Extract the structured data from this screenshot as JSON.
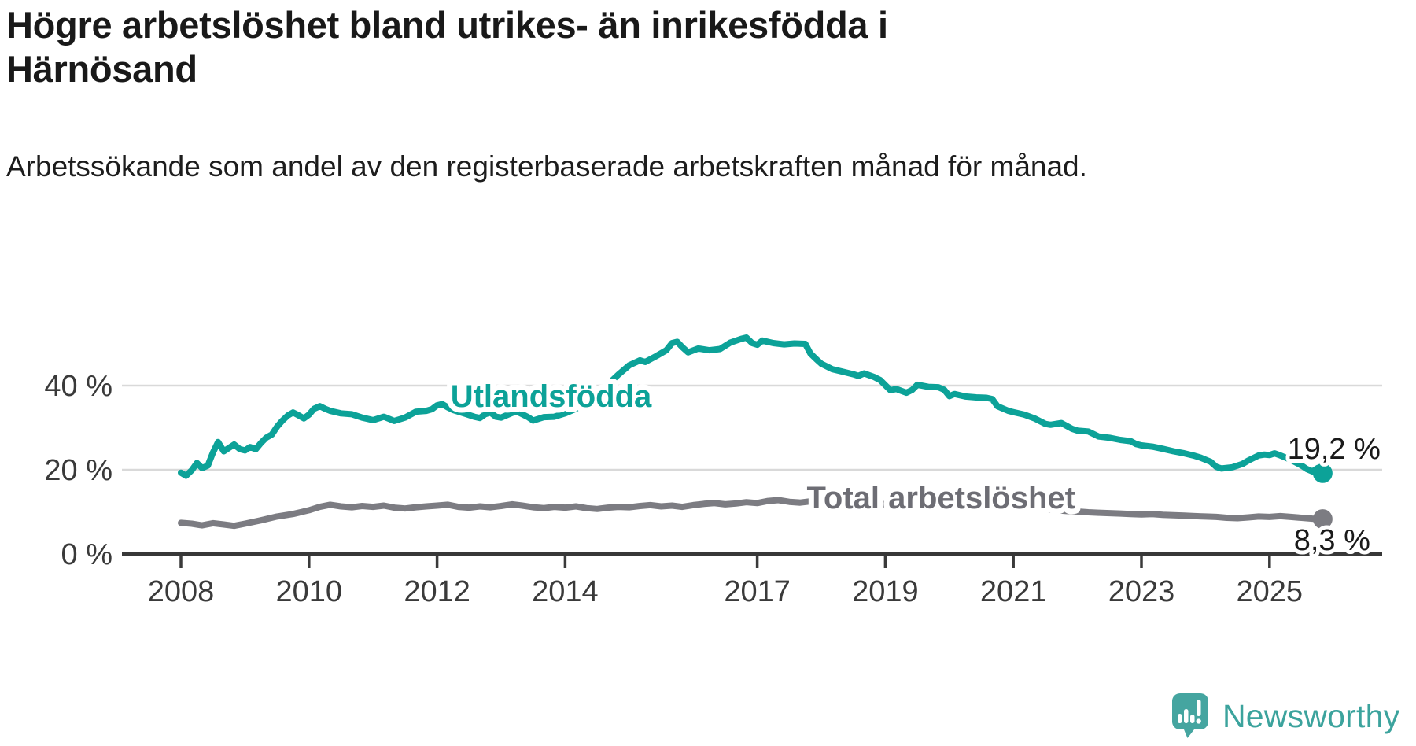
{
  "header": {
    "title": "Högre arbetslöshet bland utrikes- än inrikesfödda i Härnösand",
    "subtitle": "Arbetssökande som andel av den registerbaserade arbetskraften månad för månad."
  },
  "footer": {
    "brand": "Newsworthy",
    "brand_color": "#3ca39d"
  },
  "colors": {
    "foreign_born_line": "#0ca298",
    "total_line": "#7c7c82",
    "total_label": "#6d6d74",
    "grid": "#d9d9d9",
    "axis": "#383838",
    "tick_text": "#3a3a3a",
    "value_text": "#1a1a1a"
  },
  "chart_data": {
    "type": "line",
    "unit": "%",
    "xlabel": "",
    "ylabel": "",
    "grid": "horizontal",
    "legend_position": "inline-labels",
    "x_axis": {
      "range": [
        2007.1,
        2026.8
      ],
      "ticks": [
        {
          "value": 2008,
          "label": "2008"
        },
        {
          "value": 2010,
          "label": "2010"
        },
        {
          "value": 2012,
          "label": "2012"
        },
        {
          "value": 2014,
          "label": "2014"
        },
        {
          "value": 2017,
          "label": "2017"
        },
        {
          "value": 2019,
          "label": "2019"
        },
        {
          "value": 2021,
          "label": "2021"
        },
        {
          "value": 2023,
          "label": "2023"
        },
        {
          "value": 2025,
          "label": "2025"
        }
      ]
    },
    "y_axis": {
      "range": [
        0,
        53
      ],
      "ticks": [
        {
          "value": 0,
          "label": "0 %"
        },
        {
          "value": 20,
          "label": "20 %"
        },
        {
          "value": 40,
          "label": "40 %"
        }
      ]
    },
    "series": [
      {
        "name": "Total arbetslöshet",
        "color": "#7c7c82",
        "label_color": "#6d6d74",
        "label": {
          "x": 2019.87,
          "y": 10.8
        },
        "end_value": 8.3,
        "end_label": {
          "text": "8,3 %",
          "x": 2025.38,
          "y": 0.9
        },
        "points": [
          [
            2008.0,
            7.4
          ],
          [
            2008.17,
            7.2
          ],
          [
            2008.33,
            6.8
          ],
          [
            2008.5,
            7.3
          ],
          [
            2008.67,
            7.0
          ],
          [
            2008.83,
            6.7
          ],
          [
            2009.0,
            7.2
          ],
          [
            2009.25,
            8.0
          ],
          [
            2009.5,
            8.9
          ],
          [
            2009.75,
            9.5
          ],
          [
            2010.0,
            10.4
          ],
          [
            2010.17,
            11.2
          ],
          [
            2010.33,
            11.7
          ],
          [
            2010.5,
            11.3
          ],
          [
            2010.67,
            11.1
          ],
          [
            2010.83,
            11.4
          ],
          [
            2011.0,
            11.2
          ],
          [
            2011.17,
            11.5
          ],
          [
            2011.33,
            11.0
          ],
          [
            2011.5,
            10.8
          ],
          [
            2011.67,
            11.1
          ],
          [
            2011.83,
            11.3
          ],
          [
            2012.0,
            11.5
          ],
          [
            2012.17,
            11.7
          ],
          [
            2012.33,
            11.2
          ],
          [
            2012.5,
            11.0
          ],
          [
            2012.67,
            11.3
          ],
          [
            2012.83,
            11.1
          ],
          [
            2013.0,
            11.4
          ],
          [
            2013.17,
            11.8
          ],
          [
            2013.33,
            11.5
          ],
          [
            2013.5,
            11.1
          ],
          [
            2013.67,
            10.9
          ],
          [
            2013.83,
            11.2
          ],
          [
            2014.0,
            11.0
          ],
          [
            2014.17,
            11.3
          ],
          [
            2014.33,
            10.9
          ],
          [
            2014.5,
            10.7
          ],
          [
            2014.67,
            11.0
          ],
          [
            2014.83,
            11.2
          ],
          [
            2015.0,
            11.1
          ],
          [
            2015.17,
            11.4
          ],
          [
            2015.33,
            11.6
          ],
          [
            2015.5,
            11.3
          ],
          [
            2015.67,
            11.5
          ],
          [
            2015.83,
            11.2
          ],
          [
            2016.0,
            11.6
          ],
          [
            2016.17,
            11.9
          ],
          [
            2016.33,
            12.1
          ],
          [
            2016.5,
            11.8
          ],
          [
            2016.67,
            12.0
          ],
          [
            2016.83,
            12.3
          ],
          [
            2017.0,
            12.1
          ],
          [
            2017.17,
            12.6
          ],
          [
            2017.33,
            12.8
          ],
          [
            2017.5,
            12.4
          ],
          [
            2017.67,
            12.2
          ],
          [
            2017.83,
            12.5
          ],
          [
            2018.0,
            12.2
          ],
          [
            2018.17,
            12.4
          ],
          [
            2018.33,
            12.0
          ],
          [
            2018.5,
            12.2
          ],
          [
            2018.67,
            11.9
          ],
          [
            2018.83,
            12.1
          ],
          [
            2019.0,
            11.8
          ],
          [
            2019.17,
            12.0
          ],
          [
            2019.33,
            11.7
          ],
          [
            2019.5,
            11.9
          ],
          [
            2019.67,
            11.6
          ],
          [
            2019.83,
            11.8
          ],
          [
            2020.0,
            12.0
          ],
          [
            2020.17,
            12.3
          ],
          [
            2020.33,
            12.1
          ],
          [
            2020.5,
            11.9
          ],
          [
            2020.67,
            11.7
          ],
          [
            2020.83,
            11.5
          ],
          [
            2021.0,
            11.2
          ],
          [
            2021.17,
            11.0
          ],
          [
            2021.33,
            10.8
          ],
          [
            2021.5,
            10.6
          ],
          [
            2021.67,
            10.4
          ],
          [
            2021.83,
            10.2
          ],
          [
            2022.0,
            10.1
          ],
          [
            2022.17,
            9.9
          ],
          [
            2022.33,
            9.8
          ],
          [
            2022.5,
            9.7
          ],
          [
            2022.67,
            9.6
          ],
          [
            2022.83,
            9.5
          ],
          [
            2023.0,
            9.4
          ],
          [
            2023.17,
            9.5
          ],
          [
            2023.33,
            9.3
          ],
          [
            2023.5,
            9.2
          ],
          [
            2023.67,
            9.1
          ],
          [
            2023.83,
            9.0
          ],
          [
            2024.0,
            8.9
          ],
          [
            2024.17,
            8.8
          ],
          [
            2024.33,
            8.6
          ],
          [
            2024.5,
            8.5
          ],
          [
            2024.67,
            8.7
          ],
          [
            2024.83,
            8.9
          ],
          [
            2025.0,
            8.8
          ],
          [
            2025.17,
            9.0
          ],
          [
            2025.33,
            8.8
          ],
          [
            2025.5,
            8.6
          ],
          [
            2025.67,
            8.4
          ],
          [
            2025.83,
            8.3
          ]
        ]
      },
      {
        "name": "Utlandsfödda",
        "color": "#0ca298",
        "label_color": "#0ca298",
        "label": {
          "x": 2013.78,
          "y": 35.0
        },
        "end_value": 19.2,
        "end_label": {
          "text": "19,2 %",
          "x": 2025.28,
          "y": 22.6
        },
        "points": [
          [
            2008.0,
            19.3
          ],
          [
            2008.08,
            18.6
          ],
          [
            2008.17,
            19.9
          ],
          [
            2008.25,
            21.6
          ],
          [
            2008.33,
            20.4
          ],
          [
            2008.42,
            21.0
          ],
          [
            2008.5,
            24.1
          ],
          [
            2008.58,
            26.6
          ],
          [
            2008.67,
            24.4
          ],
          [
            2008.75,
            25.2
          ],
          [
            2008.83,
            26.0
          ],
          [
            2008.92,
            24.9
          ],
          [
            2009.0,
            24.6
          ],
          [
            2009.08,
            25.4
          ],
          [
            2009.17,
            24.9
          ],
          [
            2009.25,
            26.4
          ],
          [
            2009.33,
            27.6
          ],
          [
            2009.42,
            28.4
          ],
          [
            2009.5,
            30.2
          ],
          [
            2009.58,
            31.6
          ],
          [
            2009.67,
            32.9
          ],
          [
            2009.75,
            33.6
          ],
          [
            2009.83,
            33.0
          ],
          [
            2009.92,
            32.2
          ],
          [
            2010.0,
            33.1
          ],
          [
            2010.08,
            34.5
          ],
          [
            2010.17,
            35.1
          ],
          [
            2010.25,
            34.5
          ],
          [
            2010.33,
            34.0
          ],
          [
            2010.5,
            33.4
          ],
          [
            2010.67,
            33.2
          ],
          [
            2010.83,
            32.4
          ],
          [
            2011.0,
            31.8
          ],
          [
            2011.17,
            32.6
          ],
          [
            2011.33,
            31.6
          ],
          [
            2011.5,
            32.4
          ],
          [
            2011.67,
            33.8
          ],
          [
            2011.83,
            34.0
          ],
          [
            2011.92,
            34.4
          ],
          [
            2012.0,
            35.3
          ],
          [
            2012.08,
            35.6
          ],
          [
            2012.17,
            34.8
          ],
          [
            2012.25,
            34.2
          ],
          [
            2012.42,
            33.4
          ],
          [
            2012.58,
            32.6
          ],
          [
            2012.67,
            32.3
          ],
          [
            2012.75,
            33.2
          ],
          [
            2012.83,
            33.6
          ],
          [
            2012.92,
            32.6
          ],
          [
            2013.0,
            32.4
          ],
          [
            2013.17,
            33.5
          ],
          [
            2013.25,
            33.8
          ],
          [
            2013.42,
            32.5
          ],
          [
            2013.5,
            31.7
          ],
          [
            2013.67,
            32.5
          ],
          [
            2013.83,
            32.6
          ],
          [
            2014.0,
            33.4
          ],
          [
            2014.17,
            34.5
          ],
          [
            2014.25,
            35.3
          ],
          [
            2014.33,
            34.7
          ],
          [
            2014.5,
            37.4
          ],
          [
            2014.67,
            40.3
          ],
          [
            2014.83,
            42.6
          ],
          [
            2015.0,
            44.8
          ],
          [
            2015.17,
            46.0
          ],
          [
            2015.25,
            45.6
          ],
          [
            2015.42,
            47.0
          ],
          [
            2015.58,
            48.4
          ],
          [
            2015.67,
            50.1
          ],
          [
            2015.75,
            50.4
          ],
          [
            2015.83,
            49.1
          ],
          [
            2015.92,
            47.9
          ],
          [
            2016.08,
            48.8
          ],
          [
            2016.25,
            48.4
          ],
          [
            2016.42,
            48.7
          ],
          [
            2016.58,
            50.2
          ],
          [
            2016.75,
            51.1
          ],
          [
            2016.83,
            51.4
          ],
          [
            2016.92,
            50.1
          ],
          [
            2017.0,
            49.7
          ],
          [
            2017.08,
            50.7
          ],
          [
            2017.25,
            50.1
          ],
          [
            2017.42,
            49.8
          ],
          [
            2017.58,
            50.0
          ],
          [
            2017.75,
            49.9
          ],
          [
            2017.83,
            47.6
          ],
          [
            2017.92,
            46.3
          ],
          [
            2018.0,
            45.2
          ],
          [
            2018.17,
            43.9
          ],
          [
            2018.33,
            43.3
          ],
          [
            2018.5,
            42.7
          ],
          [
            2018.58,
            42.3
          ],
          [
            2018.67,
            42.9
          ],
          [
            2018.83,
            42.0
          ],
          [
            2018.92,
            41.3
          ],
          [
            2019.0,
            40.1
          ],
          [
            2019.08,
            38.9
          ],
          [
            2019.17,
            39.2
          ],
          [
            2019.33,
            38.3
          ],
          [
            2019.42,
            39.0
          ],
          [
            2019.5,
            40.2
          ],
          [
            2019.67,
            39.7
          ],
          [
            2019.83,
            39.6
          ],
          [
            2019.92,
            39.0
          ],
          [
            2020.0,
            37.5
          ],
          [
            2020.08,
            38.0
          ],
          [
            2020.25,
            37.4
          ],
          [
            2020.42,
            37.2
          ],
          [
            2020.58,
            37.1
          ],
          [
            2020.67,
            36.8
          ],
          [
            2020.75,
            35.1
          ],
          [
            2020.92,
            34.0
          ],
          [
            2021.0,
            33.7
          ],
          [
            2021.17,
            33.1
          ],
          [
            2021.33,
            32.2
          ],
          [
            2021.5,
            30.9
          ],
          [
            2021.58,
            30.7
          ],
          [
            2021.75,
            31.1
          ],
          [
            2021.92,
            29.7
          ],
          [
            2022.0,
            29.3
          ],
          [
            2022.17,
            29.1
          ],
          [
            2022.33,
            27.9
          ],
          [
            2022.5,
            27.6
          ],
          [
            2022.67,
            27.1
          ],
          [
            2022.83,
            26.8
          ],
          [
            2022.92,
            26.1
          ],
          [
            2023.0,
            25.8
          ],
          [
            2023.17,
            25.5
          ],
          [
            2023.33,
            25.0
          ],
          [
            2023.5,
            24.4
          ],
          [
            2023.67,
            23.9
          ],
          [
            2023.83,
            23.3
          ],
          [
            2023.92,
            22.9
          ],
          [
            2024.0,
            22.4
          ],
          [
            2024.08,
            21.9
          ],
          [
            2024.17,
            20.7
          ],
          [
            2024.25,
            20.3
          ],
          [
            2024.42,
            20.6
          ],
          [
            2024.58,
            21.4
          ],
          [
            2024.67,
            22.2
          ],
          [
            2024.83,
            23.4
          ],
          [
            2024.92,
            23.6
          ],
          [
            2025.0,
            23.5
          ],
          [
            2025.08,
            23.9
          ],
          [
            2025.17,
            23.4
          ],
          [
            2025.33,
            22.4
          ],
          [
            2025.5,
            21.0
          ],
          [
            2025.58,
            20.2
          ],
          [
            2025.67,
            19.6
          ],
          [
            2025.75,
            20.4
          ],
          [
            2025.83,
            19.2
          ]
        ]
      }
    ]
  }
}
